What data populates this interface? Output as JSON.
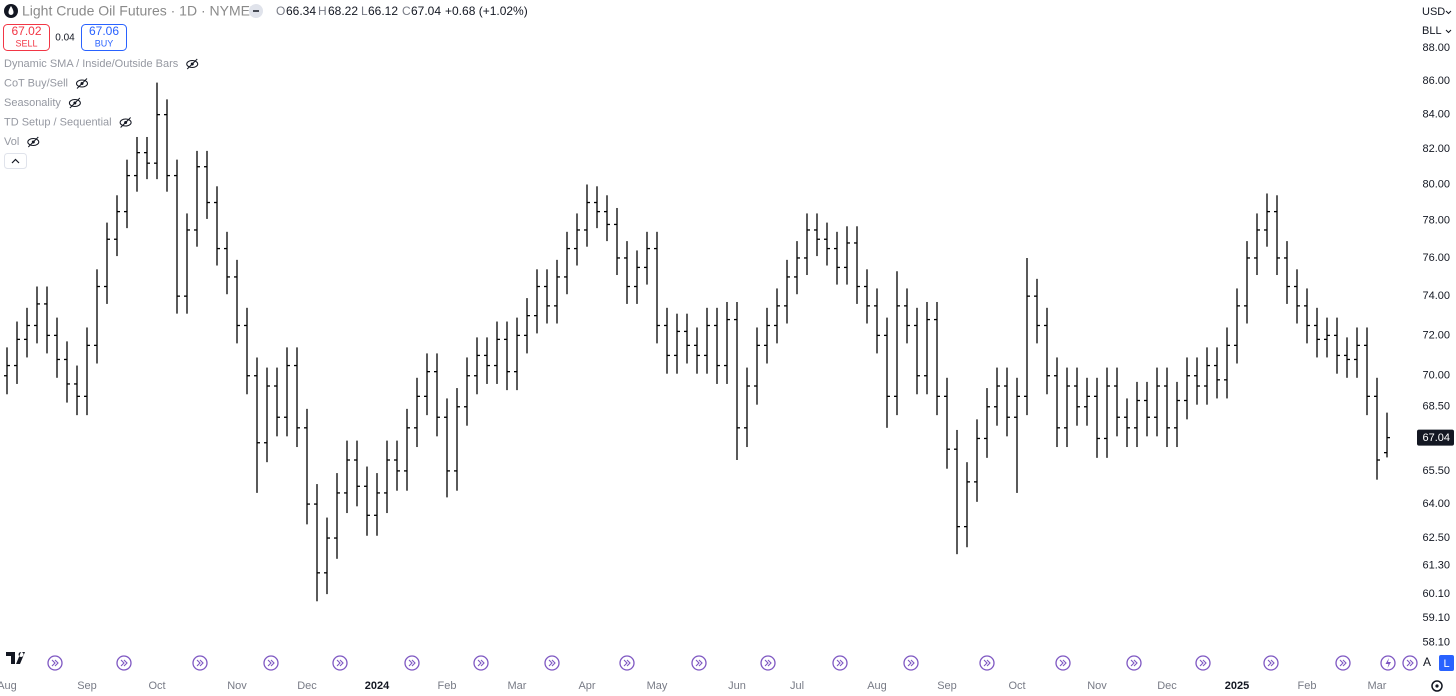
{
  "chart_data": {
    "type": "ohlc",
    "title": "Light Crude Oil Futures · 1D · NYMEX",
    "legend_letters": {
      "open": "O",
      "high": "H",
      "low": "L",
      "close": "C"
    },
    "change_label": "+0.68 (+1.02%)",
    "sell": {
      "price": 67.02,
      "label": "SELL"
    },
    "spread": 0.04,
    "buy": {
      "price": 67.06,
      "label": "BUY"
    },
    "indicators": [
      "Dynamic SMA / Inside/Outside Bars",
      "CoT Buy/Sell",
      "Seasonality",
      "TD Setup / Sequential",
      "Vol"
    ],
    "currency": "USD",
    "unit": "BLL",
    "scale_buttons": [
      "A",
      "L"
    ],
    "color": "#000000",
    "log_scale": true,
    "grid": false,
    "ylim": [
      57.8,
      91.0
    ],
    "yticks": [
      {
        "value": 88,
        "label": "88.00"
      },
      {
        "value": 86,
        "label": "86.00"
      },
      {
        "value": 84,
        "label": "84.00"
      },
      {
        "value": 82,
        "label": "82.00"
      },
      {
        "value": 80,
        "label": "80.00"
      },
      {
        "value": 78,
        "label": "78.00"
      },
      {
        "value": 76,
        "label": "76.00"
      },
      {
        "value": 74,
        "label": "74.00"
      },
      {
        "value": 72,
        "label": "72.00"
      },
      {
        "value": 70,
        "label": "70.00"
      },
      {
        "value": 68.5,
        "label": "68.50"
      },
      {
        "value": 65.5,
        "label": "65.50"
      },
      {
        "value": 64,
        "label": "64.00"
      },
      {
        "value": 62.5,
        "label": "62.50"
      },
      {
        "value": 61.3,
        "label": "61.30"
      },
      {
        "value": 60.1,
        "label": "60.10"
      },
      {
        "value": 59.1,
        "label": "59.10"
      },
      {
        "value": 58.1,
        "label": "58.10"
      }
    ],
    "categories": [
      "Aug",
      null,
      null,
      null,
      null,
      null,
      null,
      null,
      "Sep",
      null,
      null,
      null,
      null,
      null,
      null,
      "Oct",
      null,
      null,
      null,
      null,
      null,
      null,
      null,
      "Nov",
      null,
      null,
      null,
      null,
      null,
      null,
      "Dec",
      null,
      null,
      null,
      null,
      null,
      null,
      "2024",
      null,
      null,
      null,
      null,
      null,
      null,
      "Feb",
      null,
      null,
      null,
      null,
      null,
      null,
      "Mar",
      null,
      null,
      null,
      null,
      null,
      null,
      "Apr",
      null,
      null,
      null,
      null,
      null,
      null,
      "May",
      null,
      null,
      null,
      null,
      null,
      null,
      null,
      "Jun",
      null,
      null,
      null,
      null,
      null,
      "Jul",
      null,
      null,
      null,
      null,
      null,
      null,
      null,
      "Aug",
      null,
      null,
      null,
      null,
      null,
      null,
      "Sep",
      null,
      null,
      null,
      null,
      null,
      null,
      "Oct",
      null,
      null,
      null,
      null,
      null,
      null,
      null,
      "Nov",
      null,
      null,
      null,
      null,
      null,
      null,
      "Dec",
      null,
      null,
      null,
      null,
      null,
      null,
      "2025",
      null,
      null,
      null,
      null,
      null,
      null,
      "Feb",
      null,
      null,
      null,
      null,
      null,
      null,
      "Mar",
      null
    ],
    "open": [
      70,
      70.5,
      71.8,
      72.5,
      73.6,
      72.0,
      70.8,
      69.6,
      69.0,
      71.5,
      74.5,
      77.0,
      78.5,
      80.5,
      81.8,
      81.2,
      84.0,
      80.5,
      74.0,
      77.5,
      81.0,
      79.0,
      76.5,
      75.0,
      72.5,
      70.0,
      66.8,
      69.5,
      68.0,
      70.5,
      67.5,
      64.0,
      61.0,
      62.5,
      64.5,
      66.0,
      64.8,
      63.5,
      64.5,
      66.0,
      65.5,
      67.5,
      69.0,
      70.2,
      68.0,
      65.5,
      68.5,
      70.0,
      71.0,
      70.5,
      71.8,
      70.2,
      72.0,
      73.0,
      74.5,
      73.5,
      75.0,
      76.5,
      77.5,
      79.0,
      78.5,
      77.8,
      76.0,
      74.5,
      75.5,
      76.5,
      72.5,
      71.0,
      72.2,
      71.5,
      71.0,
      72.5,
      70.5,
      72.8,
      67.5,
      69.5,
      71.5,
      72.5,
      73.5,
      75.0,
      76.0,
      77.5,
      77.0,
      76.5,
      75.5,
      76.8,
      74.5,
      73.5,
      72.0,
      69.0,
      73.5,
      72.5,
      70.0,
      72.8,
      69.0,
      66.5,
      63.0,
      65.0,
      67.0,
      68.5,
      69.5,
      68.0,
      69.0,
      74.0,
      72.5,
      70.0,
      67.5,
      69.5,
      68.5,
      69.0,
      67.0,
      69.5,
      68.0,
      67.5,
      68.8,
      68.0,
      69.5,
      67.5,
      68.8,
      70.0,
      69.5,
      70.5,
      69.8,
      71.5,
      73.5,
      76.0,
      77.5,
      78.5,
      76.0,
      74.5,
      73.5,
      72.5,
      71.8,
      72.0,
      71.0,
      70.8,
      71.5,
      69.0,
      66.34
    ],
    "high": [
      71.4,
      72.7,
      73.4,
      74.5,
      74.5,
      72.9,
      71.7,
      70.5,
      72.4,
      75.4,
      77.9,
      79.4,
      81.4,
      82.7,
      82.7,
      85.9,
      84.9,
      81.4,
      78.4,
      81.9,
      81.9,
      79.9,
      77.4,
      75.9,
      73.4,
      70.9,
      70.4,
      70.4,
      71.4,
      71.4,
      68.4,
      64.9,
      63.4,
      65.4,
      66.9,
      66.9,
      65.7,
      65.4,
      66.9,
      66.9,
      68.4,
      69.9,
      71.1,
      71.1,
      68.9,
      69.4,
      70.9,
      71.9,
      71.9,
      72.7,
      72.7,
      72.9,
      73.9,
      75.4,
      75.4,
      75.9,
      77.4,
      78.4,
      80.0,
      79.9,
      79.4,
      78.7,
      76.9,
      76.4,
      77.4,
      77.4,
      73.4,
      73.1,
      73.1,
      72.4,
      73.4,
      73.4,
      73.7,
      73.7,
      70.4,
      72.4,
      73.4,
      74.4,
      75.9,
      76.9,
      78.4,
      78.4,
      77.9,
      77.4,
      77.7,
      77.7,
      75.4,
      74.4,
      72.9,
      75.3,
      74.4,
      73.4,
      73.7,
      73.7,
      69.9,
      67.4,
      65.9,
      67.9,
      69.4,
      70.4,
      70.4,
      69.9,
      76.0,
      74.9,
      73.4,
      70.9,
      70.4,
      70.4,
      69.9,
      69.9,
      70.4,
      70.4,
      68.9,
      69.7,
      69.7,
      70.4,
      70.4,
      69.7,
      70.9,
      70.9,
      71.4,
      71.4,
      72.4,
      74.4,
      76.9,
      78.4,
      79.5,
      79.4,
      76.9,
      75.4,
      74.4,
      73.4,
      72.9,
      72.9,
      71.9,
      72.4,
      72.4,
      69.9,
      68.22
    ],
    "low": [
      69.1,
      69.6,
      70.9,
      71.6,
      71.1,
      69.9,
      68.7,
      68.1,
      68.1,
      70.6,
      73.6,
      76.1,
      77.6,
      79.6,
      80.3,
      80.3,
      79.6,
      73.1,
      73.1,
      76.6,
      78.1,
      75.6,
      74.1,
      71.6,
      69.1,
      64.5,
      65.9,
      67.1,
      67.1,
      66.6,
      63.1,
      59.8,
      60.1,
      61.6,
      63.6,
      63.9,
      62.6,
      62.6,
      63.6,
      64.6,
      64.6,
      66.6,
      68.1,
      67.1,
      64.3,
      64.6,
      67.6,
      69.1,
      69.6,
      69.6,
      69.3,
      69.3,
      71.1,
      72.1,
      72.6,
      72.6,
      74.1,
      75.6,
      76.6,
      77.6,
      76.9,
      75.1,
      73.6,
      73.6,
      74.6,
      71.6,
      70.1,
      70.1,
      70.6,
      70.1,
      70.1,
      69.6,
      69.6,
      66.0,
      66.6,
      68.6,
      70.6,
      71.6,
      72.6,
      74.1,
      75.1,
      76.1,
      75.6,
      74.6,
      74.6,
      73.6,
      72.6,
      71.1,
      67.5,
      68.1,
      71.6,
      69.1,
      69.1,
      68.1,
      65.6,
      61.8,
      62.1,
      64.1,
      66.1,
      67.6,
      67.1,
      64.5,
      68.1,
      71.6,
      69.1,
      66.6,
      66.6,
      67.6,
      67.6,
      66.1,
      66.1,
      67.1,
      66.6,
      66.6,
      67.1,
      67.1,
      66.6,
      66.6,
      67.9,
      68.6,
      68.6,
      68.9,
      68.9,
      70.6,
      72.6,
      75.1,
      76.6,
      75.1,
      73.6,
      72.6,
      71.6,
      70.9,
      70.9,
      70.1,
      69.9,
      69.9,
      68.1,
      65.1,
      66.12
    ],
    "close": [
      70.5,
      71.8,
      72.5,
      73.6,
      72.0,
      70.8,
      69.6,
      69.0,
      71.5,
      74.5,
      77.0,
      78.5,
      80.5,
      81.8,
      81.2,
      84.0,
      80.5,
      74.0,
      77.5,
      81.0,
      79.0,
      76.5,
      75.0,
      72.5,
      70.0,
      66.8,
      69.5,
      68.0,
      70.5,
      67.5,
      64.0,
      61.0,
      62.5,
      64.5,
      66.0,
      64.8,
      63.5,
      64.5,
      66.0,
      65.5,
      67.5,
      69.0,
      70.2,
      68.0,
      65.5,
      68.5,
      70.0,
      71.0,
      70.5,
      71.8,
      70.2,
      72.0,
      73.0,
      74.5,
      73.5,
      75.0,
      76.5,
      77.5,
      79.0,
      78.5,
      77.8,
      76.0,
      74.5,
      75.5,
      76.5,
      72.5,
      71.0,
      72.2,
      71.5,
      71.0,
      72.5,
      70.5,
      72.8,
      67.5,
      69.5,
      71.5,
      72.5,
      73.5,
      75.0,
      76.0,
      77.5,
      77.0,
      76.5,
      75.5,
      76.8,
      74.5,
      73.5,
      72.0,
      69.0,
      73.5,
      72.5,
      70.0,
      72.8,
      69.0,
      66.5,
      63.0,
      65.0,
      67.0,
      68.5,
      69.5,
      68.0,
      69.0,
      74.0,
      72.5,
      70.0,
      67.5,
      69.5,
      68.5,
      69.0,
      67.0,
      69.5,
      68.0,
      67.5,
      68.8,
      68.0,
      69.5,
      67.5,
      68.8,
      70.0,
      69.5,
      70.5,
      69.8,
      71.5,
      73.5,
      76.0,
      77.5,
      78.5,
      76.0,
      74.5,
      73.5,
      72.5,
      71.8,
      72.0,
      71.0,
      70.8,
      71.5,
      69.0,
      66.0,
      67.04
    ]
  }
}
